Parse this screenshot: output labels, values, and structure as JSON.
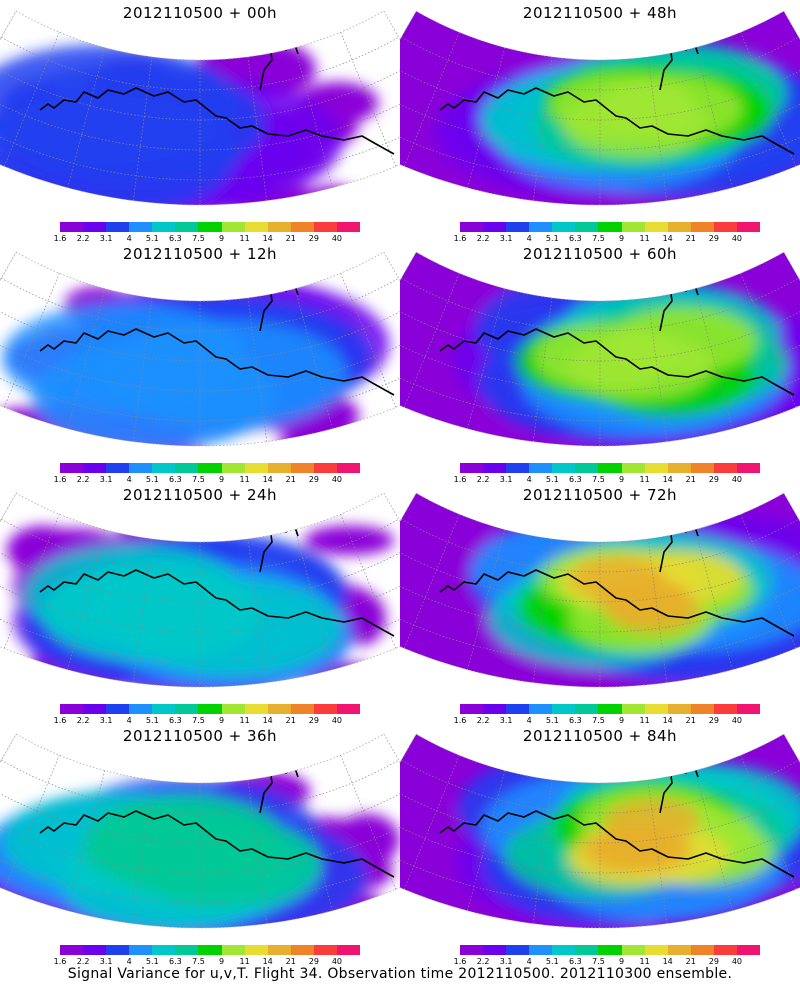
{
  "panels": [
    {
      "title": "2012110500 + 00h",
      "intensity": 0.15,
      "hotspot": "pacific",
      "coverage": 0.55
    },
    {
      "title": "2012110500 + 48h",
      "intensity": 0.55,
      "hotspot": "canada",
      "coverage": 0.95
    },
    {
      "title": "2012110500 + 12h",
      "intensity": 0.28,
      "hotspot": "pacific",
      "coverage": 0.65
    },
    {
      "title": "2012110500 + 60h",
      "intensity": 0.62,
      "hotspot": "canada",
      "coverage": 0.98
    },
    {
      "title": "2012110500 + 24h",
      "intensity": 0.35,
      "hotspot": "pacific",
      "coverage": 0.75
    },
    {
      "title": "2012110500 + 72h",
      "intensity": 0.72,
      "hotspot": "canada",
      "coverage": 1.0
    },
    {
      "title": "2012110500 + 36h",
      "intensity": 0.45,
      "hotspot": "pacific",
      "coverage": 0.85
    },
    {
      "title": "2012110500 + 84h",
      "intensity": 0.78,
      "hotspot": "canada",
      "coverage": 1.0
    }
  ],
  "colorbar": {
    "labels": [
      "1.6",
      "2.2",
      "3.1",
      "4",
      "5.1",
      "6.3",
      "7.5",
      "9",
      "11",
      "14",
      "21",
      "29",
      "40"
    ],
    "colors": [
      "#8a00d8",
      "#6a00ee",
      "#2040f0",
      "#1e90ff",
      "#00c8c8",
      "#00c896",
      "#00d200",
      "#a0e632",
      "#e6dc32",
      "#e6af2d",
      "#f08228",
      "#fa3c3c",
      "#f0146e"
    ]
  },
  "footer": "Signal Variance for u,v,T. Flight 34. Observation time 2012110500. 2012110300 ensemble."
}
